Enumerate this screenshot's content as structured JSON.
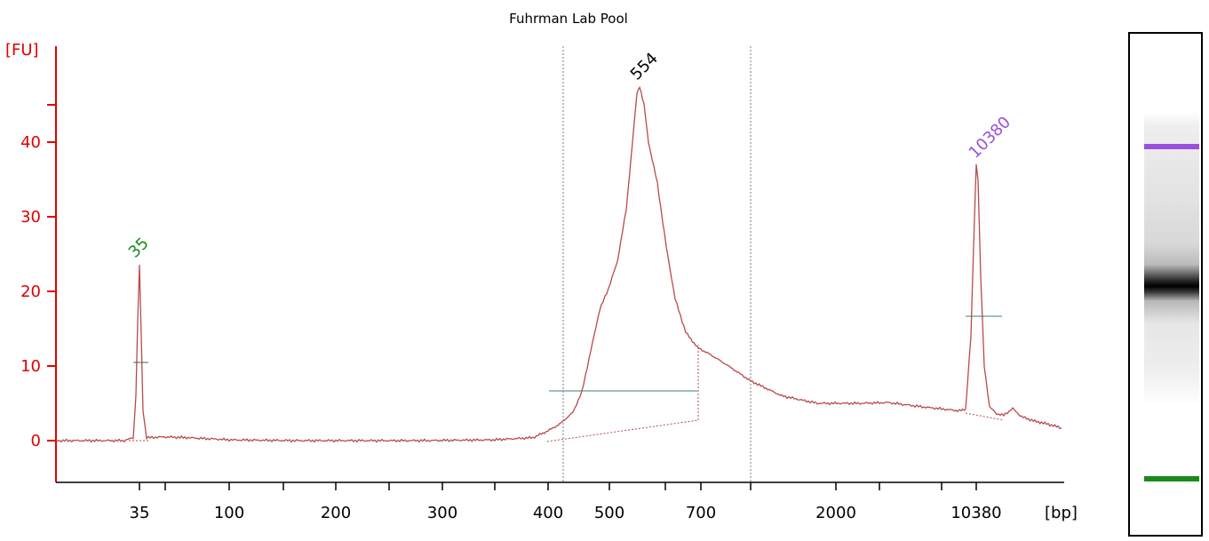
{
  "chart_data": {
    "type": "line",
    "title": "Fuhrman Lab Pool",
    "ylabel": "[FU]",
    "xlabel": "[bp]",
    "ylim": [
      -5,
      50
    ],
    "yticks": [
      0,
      10,
      20,
      30,
      40
    ],
    "ytick_labels": [
      "0",
      "10",
      "20",
      "30",
      "40"
    ],
    "xtick_labels": [
      "35",
      "100",
      "200",
      "300",
      "400",
      "500",
      "700",
      "2000",
      "10380"
    ],
    "peaks": [
      {
        "label": "35",
        "bp": 35,
        "fu": 23.5,
        "color": "#1a8a1a"
      },
      {
        "label": "554",
        "bp": 554,
        "fu": 47.5,
        "color": "#000000"
      },
      {
        "label": "10380",
        "bp": 10380,
        "fu": 37,
        "color": "#9b4fdc"
      }
    ],
    "colors": {
      "axis": "#e00000",
      "trace": "#b84a4a",
      "lower_marker": "#1a8a1a",
      "upper_marker": "#9b4fdc",
      "baseline": "#3a7d7d"
    }
  }
}
